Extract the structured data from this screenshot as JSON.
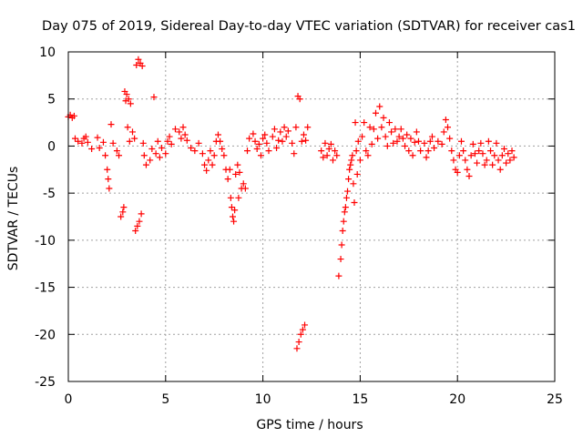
{
  "chart_data": {
    "type": "scatter",
    "title": "Day 075 of 2019, Sidereal Day-to-day VTEC variation (SDTVAR) for receiver cas1",
    "xlabel": "GPS time / hours",
    "ylabel": "SDTVAR / TECUs",
    "xlim": [
      0,
      25
    ],
    "ylim": [
      -25,
      10
    ],
    "xticks": [
      {
        "value": 0,
        "label": "0"
      },
      {
        "value": 5,
        "label": "5"
      },
      {
        "value": 10,
        "label": "10"
      },
      {
        "value": 15,
        "label": "15"
      },
      {
        "value": 20,
        "label": "20"
      },
      {
        "value": 25,
        "label": "25"
      }
    ],
    "yticks": [
      {
        "value": 10,
        "label": "10"
      },
      {
        "value": 5,
        "label": "5"
      },
      {
        "value": 0,
        "label": "0"
      },
      {
        "value": -5,
        "label": "-5"
      },
      {
        "value": -10,
        "label": "-10"
      },
      {
        "value": -15,
        "label": "-15"
      },
      {
        "value": -20,
        "label": "-20"
      },
      {
        "value": -25,
        "label": "-25"
      }
    ],
    "grid": true,
    "marker": "+",
    "color": "#ff0000",
    "series": [
      {
        "name": "SDTVAR",
        "points": [
          [
            0.0,
            3.1
          ],
          [
            0.1,
            3.3
          ],
          [
            0.2,
            3.0
          ],
          [
            0.3,
            3.2
          ],
          [
            0.35,
            0.8
          ],
          [
            0.5,
            0.5
          ],
          [
            0.7,
            0.3
          ],
          [
            0.8,
            0.8
          ],
          [
            0.9,
            1.0
          ],
          [
            1.0,
            0.4
          ],
          [
            1.2,
            -0.3
          ],
          [
            1.5,
            0.9
          ],
          [
            1.6,
            -0.2
          ],
          [
            1.8,
            0.4
          ],
          [
            1.9,
            -1.0
          ],
          [
            2.0,
            -2.5
          ],
          [
            2.05,
            -3.5
          ],
          [
            2.1,
            -4.5
          ],
          [
            2.2,
            2.3
          ],
          [
            2.3,
            0.3
          ],
          [
            2.5,
            -0.5
          ],
          [
            2.6,
            -1.0
          ],
          [
            2.7,
            -7.5
          ],
          [
            2.8,
            -7.0
          ],
          [
            2.85,
            -6.5
          ],
          [
            2.9,
            5.8
          ],
          [
            2.95,
            4.8
          ],
          [
            3.0,
            5.5
          ],
          [
            3.05,
            2.0
          ],
          [
            3.1,
            5.0
          ],
          [
            3.15,
            0.5
          ],
          [
            3.2,
            4.5
          ],
          [
            3.3,
            1.5
          ],
          [
            3.4,
            0.8
          ],
          [
            3.45,
            -9.0
          ],
          [
            3.5,
            8.6
          ],
          [
            3.55,
            -8.5
          ],
          [
            3.6,
            9.2
          ],
          [
            3.65,
            -8.0
          ],
          [
            3.7,
            8.8
          ],
          [
            3.75,
            -7.2
          ],
          [
            3.8,
            8.5
          ],
          [
            3.85,
            0.3
          ],
          [
            3.9,
            -1.0
          ],
          [
            4.0,
            -2.0
          ],
          [
            4.2,
            -1.5
          ],
          [
            4.3,
            -0.3
          ],
          [
            4.4,
            5.2
          ],
          [
            4.5,
            -0.8
          ],
          [
            4.6,
            0.5
          ],
          [
            4.7,
            -1.2
          ],
          [
            4.8,
            -0.2
          ],
          [
            5.0,
            -0.8
          ],
          [
            5.1,
            0.5
          ],
          [
            5.2,
            1.0
          ],
          [
            5.3,
            0.2
          ],
          [
            5.5,
            1.8
          ],
          [
            5.7,
            1.5
          ],
          [
            5.8,
            0.8
          ],
          [
            5.9,
            2.0
          ],
          [
            6.0,
            1.2
          ],
          [
            6.1,
            0.6
          ],
          [
            6.3,
            -0.2
          ],
          [
            6.5,
            -0.5
          ],
          [
            6.7,
            0.3
          ],
          [
            6.9,
            -0.8
          ],
          [
            7.0,
            -2.0
          ],
          [
            7.1,
            -2.6
          ],
          [
            7.2,
            -1.5
          ],
          [
            7.3,
            -0.5
          ],
          [
            7.4,
            -2.0
          ],
          [
            7.5,
            -1.0
          ],
          [
            7.6,
            0.5
          ],
          [
            7.7,
            1.2
          ],
          [
            7.8,
            0.5
          ],
          [
            7.9,
            -0.3
          ],
          [
            8.0,
            -1.0
          ],
          [
            8.1,
            -2.5
          ],
          [
            8.2,
            -3.5
          ],
          [
            8.3,
            -2.5
          ],
          [
            8.35,
            -5.5
          ],
          [
            8.4,
            -6.5
          ],
          [
            8.45,
            -7.5
          ],
          [
            8.5,
            -8.0
          ],
          [
            8.55,
            -6.8
          ],
          [
            8.6,
            -3.0
          ],
          [
            8.7,
            -2.0
          ],
          [
            8.75,
            -5.5
          ],
          [
            8.8,
            -2.8
          ],
          [
            8.9,
            -4.5
          ],
          [
            9.0,
            -4.0
          ],
          [
            9.1,
            -4.5
          ],
          [
            9.2,
            -0.5
          ],
          [
            9.3,
            0.8
          ],
          [
            9.5,
            1.3
          ],
          [
            9.6,
            0.5
          ],
          [
            9.7,
            -0.3
          ],
          [
            9.8,
            0.2
          ],
          [
            9.9,
            -1.0
          ],
          [
            10.0,
            0.8
          ],
          [
            10.1,
            1.2
          ],
          [
            10.2,
            0.3
          ],
          [
            10.3,
            -0.5
          ],
          [
            10.5,
            1.0
          ],
          [
            10.6,
            1.8
          ],
          [
            10.7,
            -0.2
          ],
          [
            10.8,
            0.6
          ],
          [
            10.9,
            1.5
          ],
          [
            11.0,
            0.5
          ],
          [
            11.1,
            2.0
          ],
          [
            11.2,
            1.0
          ],
          [
            11.3,
            1.6
          ],
          [
            11.5,
            0.3
          ],
          [
            11.6,
            -0.8
          ],
          [
            11.7,
            2.0
          ],
          [
            11.75,
            -21.5
          ],
          [
            11.8,
            5.3
          ],
          [
            11.85,
            -20.8
          ],
          [
            11.9,
            5.0
          ],
          [
            11.95,
            -20.0
          ],
          [
            12.0,
            0.5
          ],
          [
            12.05,
            -19.5
          ],
          [
            12.1,
            1.2
          ],
          [
            12.15,
            -19.0
          ],
          [
            12.2,
            0.6
          ],
          [
            12.3,
            2.0
          ],
          [
            13.0,
            -0.5
          ],
          [
            13.1,
            -1.2
          ],
          [
            13.2,
            0.3
          ],
          [
            13.3,
            -1.0
          ],
          [
            13.4,
            -0.3
          ],
          [
            13.5,
            0.2
          ],
          [
            13.6,
            -1.5
          ],
          [
            13.7,
            -0.5
          ],
          [
            13.8,
            -1.0
          ],
          [
            13.9,
            -13.8
          ],
          [
            14.0,
            -12.0
          ],
          [
            14.05,
            -10.5
          ],
          [
            14.1,
            -9.0
          ],
          [
            14.15,
            -8.0
          ],
          [
            14.2,
            -7.0
          ],
          [
            14.25,
            -6.5
          ],
          [
            14.3,
            -5.5
          ],
          [
            14.35,
            -4.8
          ],
          [
            14.4,
            -3.5
          ],
          [
            14.45,
            -2.5
          ],
          [
            14.5,
            -2.0
          ],
          [
            14.55,
            -1.5
          ],
          [
            14.6,
            -1.0
          ],
          [
            14.65,
            -4.0
          ],
          [
            14.7,
            -6.0
          ],
          [
            14.75,
            2.5
          ],
          [
            14.8,
            -0.5
          ],
          [
            14.85,
            -3.0
          ],
          [
            14.9,
            0.5
          ],
          [
            15.0,
            -1.5
          ],
          [
            15.1,
            1.0
          ],
          [
            15.2,
            2.5
          ],
          [
            15.3,
            -0.5
          ],
          [
            15.4,
            -1.0
          ],
          [
            15.5,
            2.0
          ],
          [
            15.6,
            0.2
          ],
          [
            15.7,
            1.8
          ],
          [
            15.8,
            3.5
          ],
          [
            15.9,
            0.8
          ],
          [
            16.0,
            4.2
          ],
          [
            16.1,
            2.0
          ],
          [
            16.2,
            3.0
          ],
          [
            16.3,
            1.0
          ],
          [
            16.4,
            0.0
          ],
          [
            16.5,
            2.5
          ],
          [
            16.6,
            1.5
          ],
          [
            16.7,
            0.3
          ],
          [
            16.8,
            1.8
          ],
          [
            16.9,
            0.5
          ],
          [
            17.0,
            1.0
          ],
          [
            17.1,
            1.8
          ],
          [
            17.2,
            0.8
          ],
          [
            17.3,
            0.0
          ],
          [
            17.4,
            1.2
          ],
          [
            17.5,
            -0.5
          ],
          [
            17.6,
            0.8
          ],
          [
            17.7,
            -1.0
          ],
          [
            17.8,
            0.4
          ],
          [
            17.9,
            1.5
          ],
          [
            18.0,
            0.5
          ],
          [
            18.1,
            -0.5
          ],
          [
            18.3,
            0.3
          ],
          [
            18.4,
            -1.2
          ],
          [
            18.5,
            -0.5
          ],
          [
            18.6,
            0.5
          ],
          [
            18.7,
            1.0
          ],
          [
            18.8,
            -0.2
          ],
          [
            19.0,
            0.5
          ],
          [
            19.2,
            0.2
          ],
          [
            19.3,
            1.5
          ],
          [
            19.4,
            2.8
          ],
          [
            19.5,
            2.0
          ],
          [
            19.6,
            0.8
          ],
          [
            19.7,
            -0.5
          ],
          [
            19.8,
            -1.5
          ],
          [
            19.9,
            -2.5
          ],
          [
            20.0,
            -2.8
          ],
          [
            20.1,
            -1.0
          ],
          [
            20.2,
            0.5
          ],
          [
            20.3,
            -0.5
          ],
          [
            20.4,
            -1.5
          ],
          [
            20.5,
            -2.5
          ],
          [
            20.6,
            -3.2
          ],
          [
            20.7,
            -1.0
          ],
          [
            20.8,
            0.2
          ],
          [
            20.9,
            -0.8
          ],
          [
            21.0,
            -1.8
          ],
          [
            21.1,
            -0.5
          ],
          [
            21.2,
            0.3
          ],
          [
            21.3,
            -0.8
          ],
          [
            21.4,
            -2.0
          ],
          [
            21.5,
            -1.5
          ],
          [
            21.6,
            0.5
          ],
          [
            21.7,
            -0.5
          ],
          [
            21.8,
            -2.0
          ],
          [
            21.9,
            -1.0
          ],
          [
            22.0,
            0.3
          ],
          [
            22.1,
            -1.5
          ],
          [
            22.2,
            -2.5
          ],
          [
            22.3,
            -1.0
          ],
          [
            22.4,
            -0.3
          ],
          [
            22.5,
            -1.8
          ],
          [
            22.6,
            -0.8
          ],
          [
            22.7,
            -1.5
          ],
          [
            22.8,
            -0.5
          ],
          [
            22.9,
            -1.2
          ]
        ]
      }
    ]
  }
}
